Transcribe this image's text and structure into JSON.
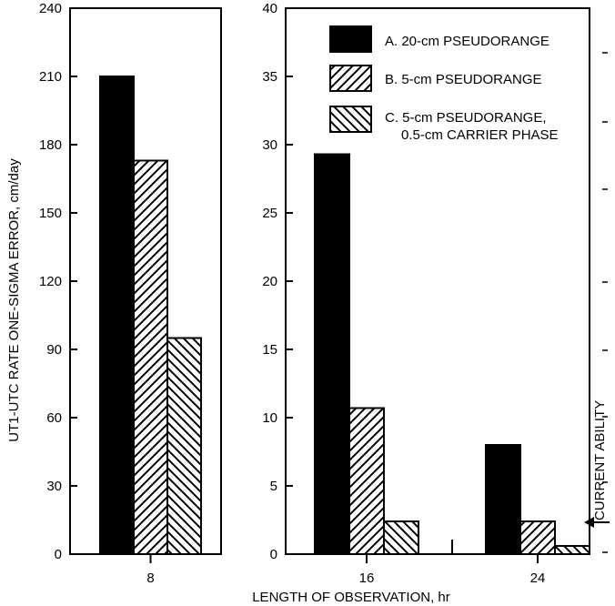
{
  "chart_data": {
    "type": "bar",
    "xlabel": "LENGTH OF OBSERVATION, hr",
    "ylabel": "UT1-UTC RATE ONE-SIGMA ERROR, cm/day",
    "legend_position": "top-right",
    "grid": false,
    "series": [
      {
        "name": "A. 20-cm PSEUDORANGE",
        "pattern": "solid",
        "color": "#000000"
      },
      {
        "name": "B. 5-cm PSEUDORANGE",
        "pattern": "hatch-forward",
        "color": "#000000"
      },
      {
        "name_lines": [
          "C. 5-cm PSEUDORANGE,",
          "0.5-cm CARRIER PHASE"
        ],
        "pattern": "hatch-back",
        "color": "#000000"
      }
    ],
    "panels": [
      {
        "categories": [
          "8"
        ],
        "ylim": [
          0,
          240
        ],
        "yticks": [
          "0",
          "30",
          "60",
          "90",
          "120",
          "150",
          "180",
          "210",
          "240"
        ],
        "values": [
          [
            210
          ],
          [
            173
          ],
          [
            95
          ]
        ]
      },
      {
        "categories": [
          "16",
          "24"
        ],
        "ylim": [
          0,
          40
        ],
        "yticks": [
          "0",
          "5",
          "10",
          "15",
          "20",
          "25",
          "30",
          "35",
          "40"
        ],
        "values": [
          [
            29.3,
            8.0
          ],
          [
            10.7,
            2.4
          ],
          [
            2.4,
            0.6
          ]
        ]
      }
    ],
    "annotation": "CURRENT ABILITY"
  }
}
